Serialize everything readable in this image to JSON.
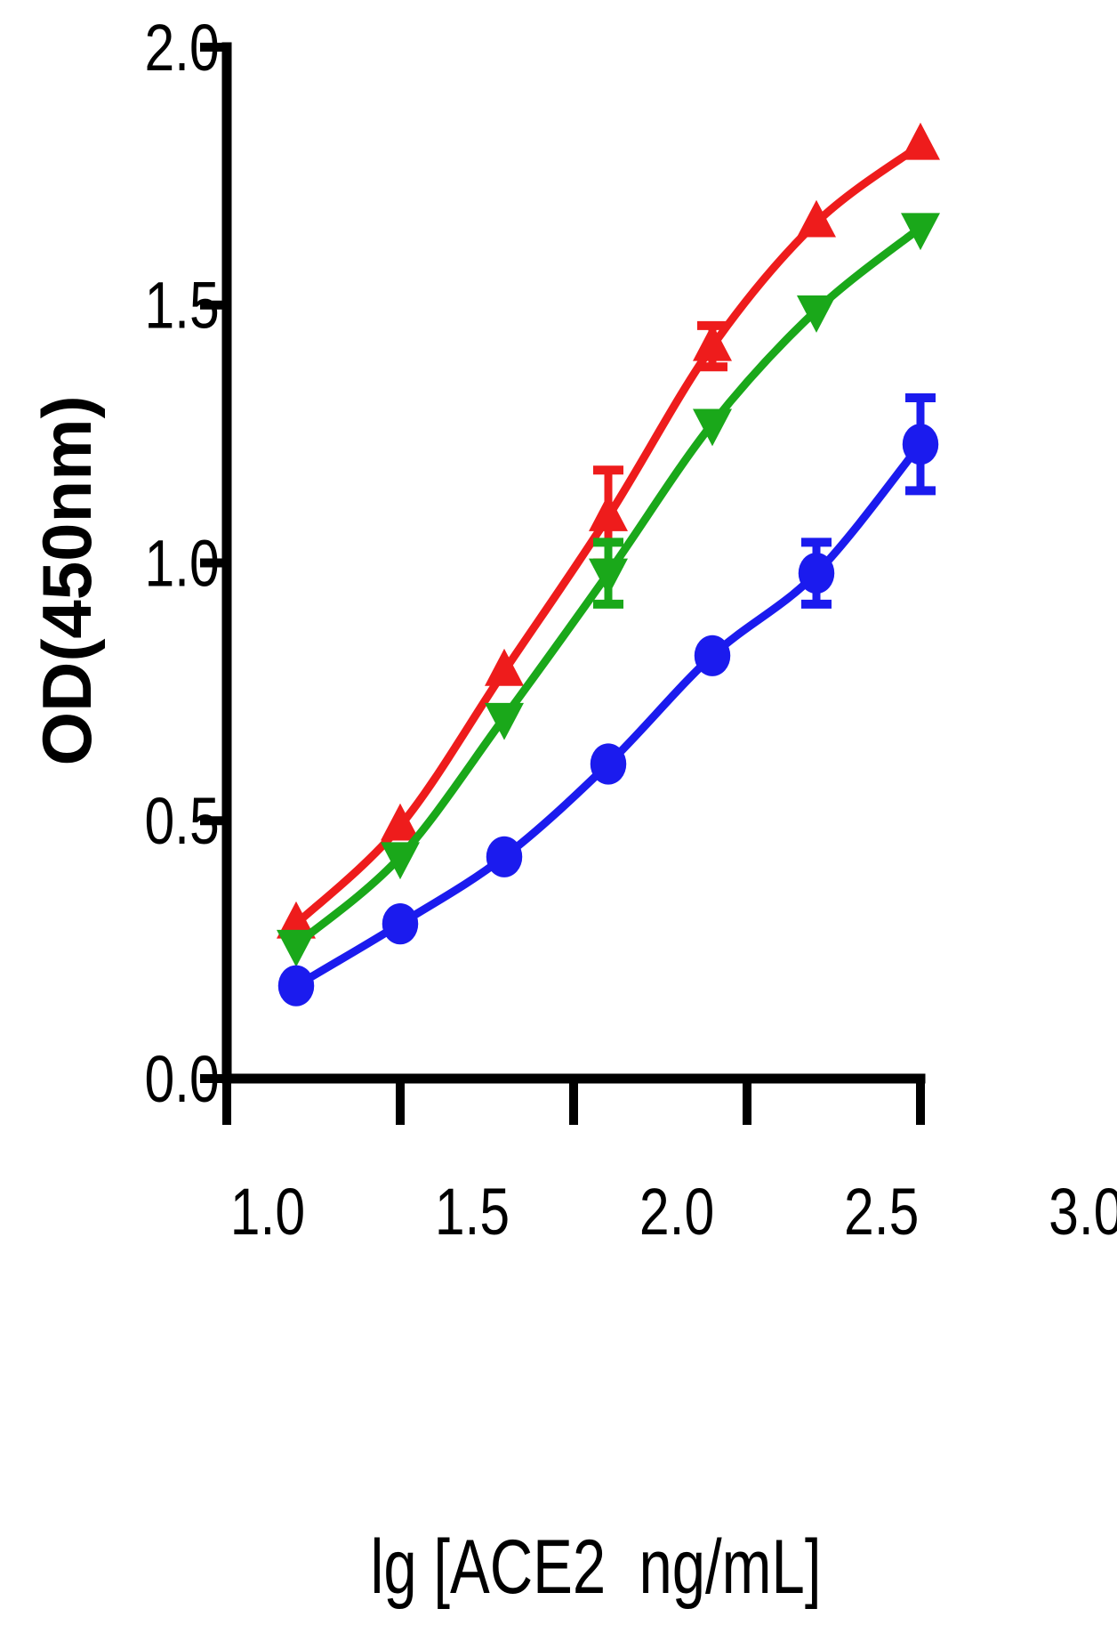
{
  "chart_data": {
    "type": "line",
    "title": "",
    "xlabel": "lg [ACE2  ng/mL]",
    "ylabel": "OD(450nm)",
    "xlim": [
      1.0,
      3.0
    ],
    "ylim": [
      0.0,
      2.0
    ],
    "x_ticks": [
      "1.0",
      "1.5",
      "2.0",
      "2.5",
      "3.0"
    ],
    "y_ticks": [
      "0.0",
      "0.5",
      "1.0",
      "1.5",
      "2.0"
    ],
    "grid": false,
    "legend": "none",
    "x": [
      1.2,
      1.5,
      1.8,
      2.1,
      2.4,
      2.7,
      3.0
    ],
    "series": [
      {
        "marker": "triangle-up",
        "color": "#ee1c1c",
        "values": [
          0.3,
          0.49,
          0.79,
          1.09,
          1.42,
          1.66,
          1.81
        ],
        "errors": [
          0.0,
          0.0,
          0.0,
          0.09,
          0.04,
          0.0,
          0.0
        ]
      },
      {
        "marker": "triangle-down",
        "color": "#1aa81a",
        "values": [
          0.26,
          0.43,
          0.7,
          0.98,
          1.27,
          1.49,
          1.65
        ],
        "errors": [
          0.0,
          0.0,
          0.0,
          0.06,
          0.0,
          0.0,
          0.0
        ]
      },
      {
        "marker": "circle",
        "color": "#1b1bee",
        "values": [
          0.18,
          0.3,
          0.43,
          0.61,
          0.82,
          0.98,
          1.23
        ],
        "errors": [
          0.0,
          0.0,
          0.0,
          0.0,
          0.0,
          0.06,
          0.09
        ]
      }
    ]
  }
}
